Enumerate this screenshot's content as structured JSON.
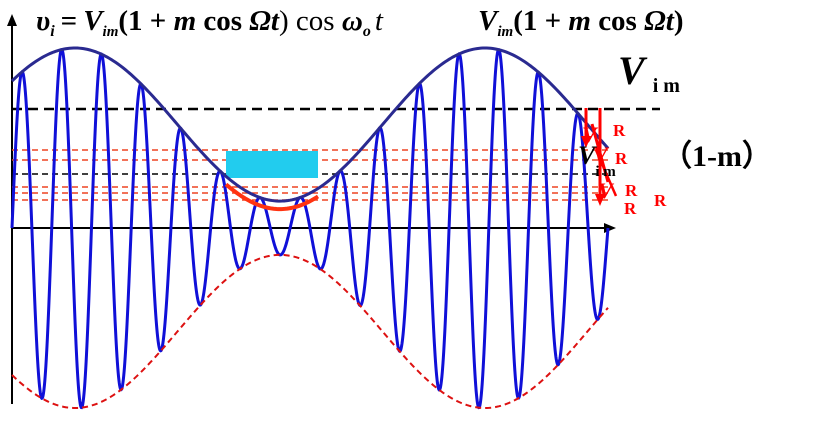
{
  "formula_left": {
    "lhs": "υ",
    "lhs_sub": "i",
    "eq": "=",
    "v": "V",
    "v_sub": "im",
    "paren": "(1 + ",
    "m": "m",
    "cos": " cos ",
    "omega_cap": "Ωt",
    "close": ") cos ",
    "omega": "ω",
    "omega_sub": "o",
    "t": "t"
  },
  "formula_right": {
    "v": "V",
    "v_sub": "im",
    "paren": "(1 + ",
    "m": "m",
    "cos": " cos ",
    "omega_cap": "Ωt",
    "close": ")"
  },
  "label_vim": {
    "v": "V",
    "sub": "i m"
  },
  "label_one_minus_m": "（1-m）",
  "label_vim2": {
    "v": "V",
    "sub": "i m"
  },
  "vr_labels": [
    "V",
    "R",
    "V",
    "R",
    "V",
    "R",
    "R",
    "R"
  ],
  "colors": {
    "carrier": "#1010d8",
    "upper_envelope": "#2a2a90",
    "lower_envelope": "#dd1111",
    "threshold_dashes": "#ee4422",
    "black_dash": "#000000",
    "highlight_box": "#22ccee",
    "highlight_curve": "#ff3311",
    "arrow_red": "#ff0000"
  },
  "signal": {
    "carrier_cycles": 15,
    "modulation_index": 0.74
  }
}
